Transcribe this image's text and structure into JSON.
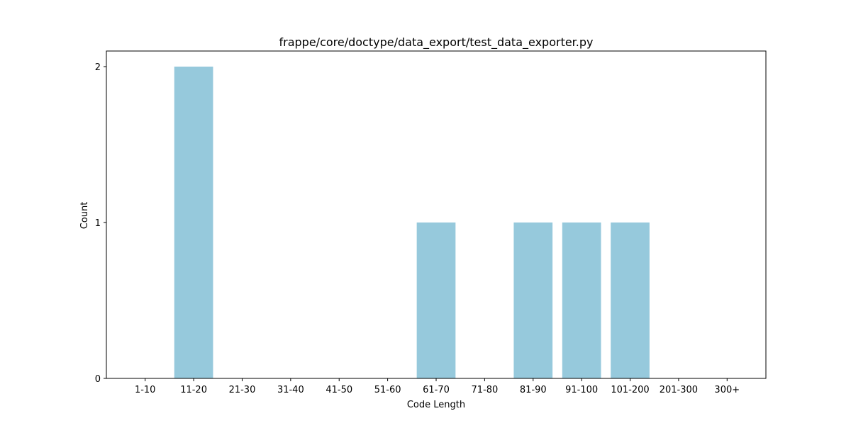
{
  "chart_data": {
    "type": "bar",
    "title": "frappe/core/doctype/data_export/test_data_exporter.py",
    "xlabel": "Code Length",
    "ylabel": "Count",
    "categories": [
      "1-10",
      "11-20",
      "21-30",
      "31-40",
      "41-50",
      "51-60",
      "61-70",
      "71-80",
      "81-90",
      "91-100",
      "101-200",
      "201-300",
      "300+"
    ],
    "values": [
      0,
      2,
      0,
      0,
      0,
      0,
      1,
      0,
      1,
      1,
      1,
      0,
      0
    ],
    "ylim": [
      0,
      2.1
    ],
    "yticks": [
      0,
      1,
      2
    ],
    "bar_color": "#96c9dc",
    "grid": false,
    "legend": "none"
  }
}
